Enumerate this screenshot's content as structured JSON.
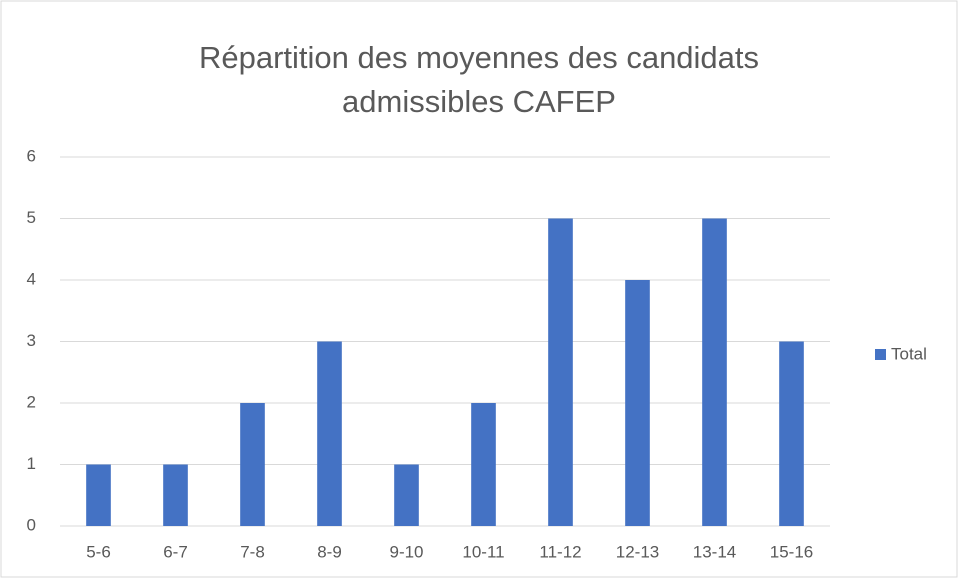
{
  "chart_data": {
    "type": "bar",
    "title": "Répartition des moyennes des candidats admissibles CAFEP",
    "categories": [
      "5-6",
      "6-7",
      "7-8",
      "8-9",
      "9-10",
      "10-11",
      "11-12",
      "12-13",
      "13-14",
      "15-16"
    ],
    "series": [
      {
        "name": "Total",
        "color": "#4472c4",
        "values": [
          1,
          1,
          2,
          3,
          1,
          2,
          5,
          4,
          5,
          3
        ]
      }
    ],
    "ylim": [
      0,
      6
    ],
    "yticks": [
      0,
      1,
      2,
      3,
      4,
      5,
      6
    ],
    "grid": true,
    "legend": "right"
  }
}
